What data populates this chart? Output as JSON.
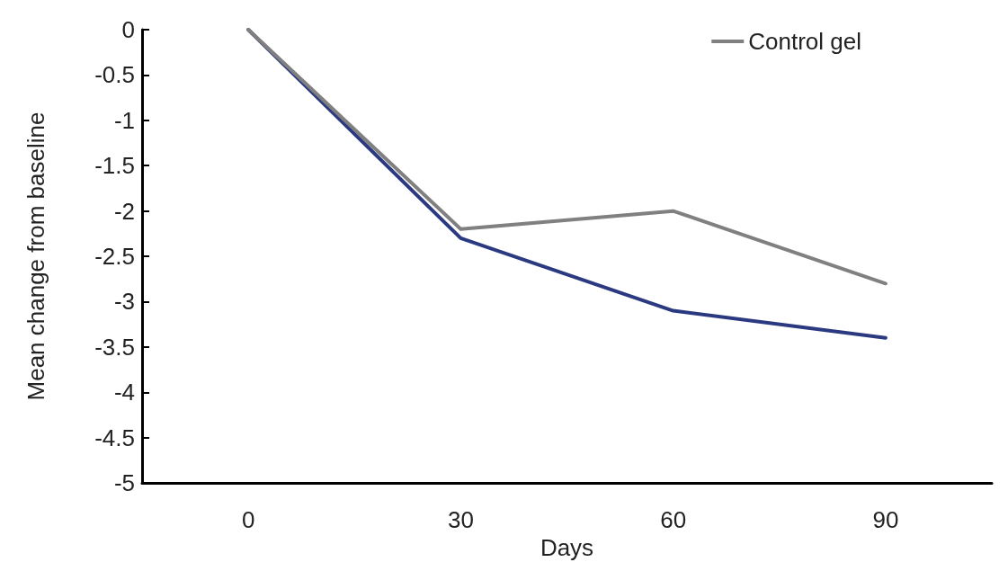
{
  "chart_data": {
    "type": "line",
    "xlabel": "Days",
    "ylabel": "Mean change from baseline",
    "categories": [
      "0",
      "30",
      "60",
      "90"
    ],
    "series": [
      {
        "color": "#2b3a80",
        "values": [
          0,
          -2.3,
          -3.1,
          -3.4
        ]
      },
      {
        "name": "Control gel",
        "color": "#808080",
        "values": [
          0,
          -2.2,
          -2.0,
          -2.8
        ]
      }
    ],
    "ylim": [
      -5,
      0
    ],
    "yticks": [
      -5,
      -4.5,
      -4,
      -3.5,
      -3,
      -2.5,
      -2,
      -1.5,
      -1,
      -0.5,
      0
    ],
    "grid": false,
    "legend": "top right",
    "marker": "none",
    "line_style": "solid"
  }
}
